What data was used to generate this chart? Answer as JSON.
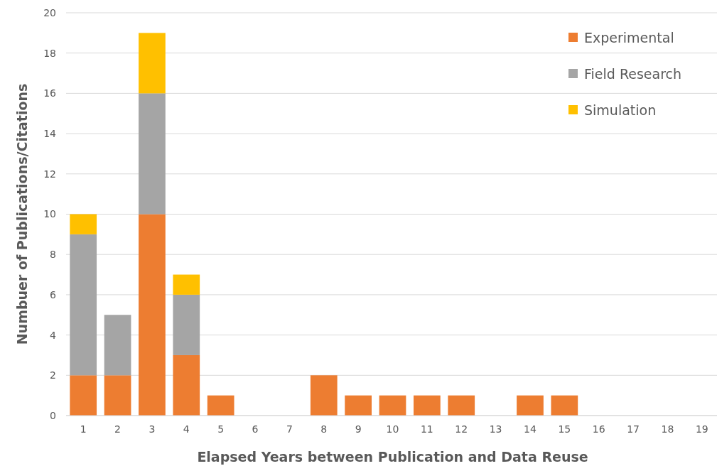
{
  "chart_data": {
    "type": "bar",
    "stacked": true,
    "xlabel": "Elapsed Years between Publication and Data Reuse",
    "ylabel": "Numbuer of Publications/Citations",
    "categories": [
      "1",
      "2",
      "3",
      "4",
      "5",
      "6",
      "7",
      "8",
      "9",
      "10",
      "11",
      "12",
      "13",
      "14",
      "15",
      "16",
      "17",
      "18",
      "19"
    ],
    "series": [
      {
        "name": "Experimental",
        "color": "#ed7d31",
        "values": [
          2,
          2,
          10,
          3,
          1,
          0,
          0,
          2,
          1,
          1,
          1,
          1,
          0,
          1,
          1,
          0,
          0,
          0,
          0
        ]
      },
      {
        "name": "Field Research",
        "color": "#a5a5a5",
        "values": [
          7,
          3,
          6,
          3,
          0,
          0,
          0,
          0,
          0,
          0,
          0,
          0,
          0,
          0,
          0,
          0,
          0,
          0,
          0
        ]
      },
      {
        "name": "Simulation",
        "color": "#ffc000",
        "values": [
          1,
          0,
          3,
          1,
          0,
          0,
          0,
          0,
          0,
          0,
          0,
          0,
          0,
          0,
          0,
          0,
          0,
          0,
          0
        ]
      }
    ],
    "ylim": [
      0,
      20
    ],
    "yticks": [
      0,
      2,
      4,
      6,
      8,
      10,
      12,
      14,
      16,
      18,
      20
    ],
    "grid": "y",
    "legend": "top right"
  }
}
